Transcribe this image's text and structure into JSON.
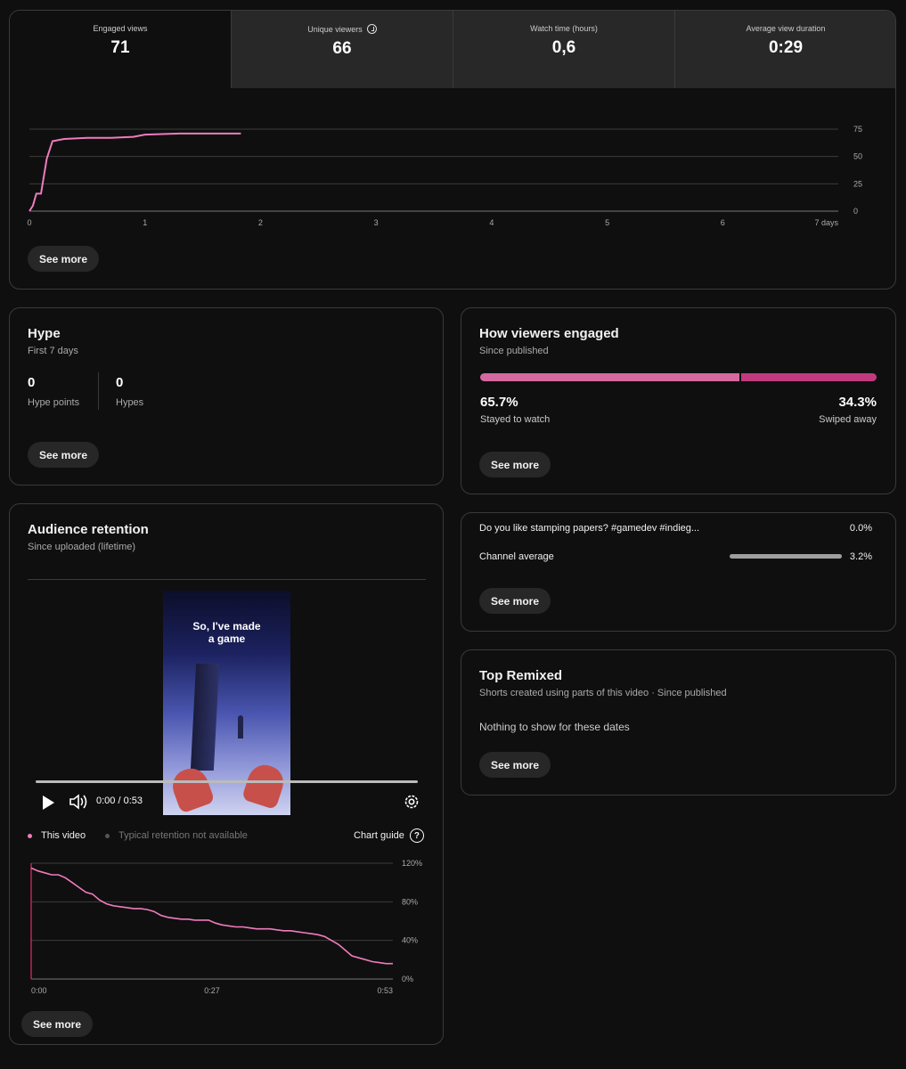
{
  "metrics": [
    {
      "label": "Engaged views",
      "value": "71"
    },
    {
      "label": "Unique viewers",
      "value": "66",
      "icon": "clock-icon"
    },
    {
      "label": "Watch time (hours)",
      "value": "0,6"
    },
    {
      "label": "Average view duration",
      "value": "0:29"
    }
  ],
  "main_chart": {
    "see_more": "See more",
    "chart_data": {
      "type": "line",
      "x": [
        0,
        0.03,
        0.06,
        0.1,
        0.15,
        0.2,
        0.3,
        0.5,
        0.7,
        0.9,
        1.0,
        1.3,
        1.83
      ],
      "y": [
        0,
        5,
        16,
        16,
        48,
        64,
        66,
        67,
        67,
        68,
        70,
        71,
        71
      ],
      "x_ticks": [
        "0",
        "1",
        "2",
        "3",
        "4",
        "5",
        "6",
        "7 days"
      ],
      "y_ticks": [
        "0",
        "25",
        "50",
        "75"
      ],
      "xlim": [
        0,
        7
      ],
      "ylim": [
        0,
        75
      ],
      "series_color": "#f07bbd"
    }
  },
  "hype": {
    "title": "Hype",
    "subtitle": "First 7 days",
    "points_value": "0",
    "points_label": "Hype points",
    "hypes_value": "0",
    "hypes_label": "Hypes",
    "see_more": "See more"
  },
  "engaged": {
    "title": "How viewers engaged",
    "subtitle": "Since published",
    "stayed_pct": "65.7%",
    "stayed_label": "Stayed to watch",
    "swiped_pct": "34.3%",
    "swiped_label": "Swiped away",
    "stayed_value": 65.7,
    "see_more": "See more"
  },
  "retention": {
    "title": "Audience retention",
    "subtitle": "Since uploaded (lifetime)",
    "video_text": "So, I've made\na game",
    "time": "0:00 / 0:53",
    "legend_this": "This video",
    "legend_typical": "Typical retention not available",
    "chart_guide": "Chart guide",
    "see_more": "See more",
    "chart_data": {
      "type": "line",
      "x": [
        0,
        1,
        2,
        3,
        4,
        5,
        6,
        7,
        8,
        9,
        10,
        11,
        12,
        13,
        14,
        15,
        16,
        17,
        18,
        19,
        20,
        21,
        22,
        23,
        24,
        25,
        26,
        27,
        28,
        29,
        30,
        31,
        32,
        33,
        34,
        35,
        36,
        37,
        38,
        39,
        40,
        41,
        42,
        43,
        44,
        45,
        46,
        47,
        48,
        49,
        50,
        51,
        52,
        53
      ],
      "y": [
        115,
        112,
        110,
        108,
        108,
        105,
        100,
        95,
        90,
        88,
        82,
        78,
        76,
        75,
        74,
        73,
        73,
        72,
        70,
        66,
        64,
        63,
        62,
        62,
        61,
        61,
        61,
        58,
        56,
        55,
        54,
        54,
        53,
        52,
        52,
        52,
        51,
        50,
        50,
        49,
        48,
        47,
        46,
        44,
        40,
        36,
        30,
        24,
        22,
        20,
        18,
        17,
        16,
        16
      ],
      "x_ticks": [
        "0:00",
        "0:27",
        "0:53"
      ],
      "y_ticks": [
        "0%",
        "40%",
        "80%",
        "120%"
      ],
      "xlim": [
        0,
        53
      ],
      "ylim": [
        0,
        120
      ],
      "series_color": "#f07bbd"
    }
  },
  "comparison": {
    "video_title": "Do you like stamping papers? #gamedev #indieg...",
    "video_value": "0.0%",
    "channel_label": "Channel average",
    "channel_value": "3.2%",
    "channel_fill": 1.0,
    "see_more": "See more"
  },
  "remixed": {
    "title": "Top Remixed",
    "subtitle": "Shorts created using parts of this video · Since published",
    "empty": "Nothing to show for these dates",
    "see_more": "See more"
  }
}
